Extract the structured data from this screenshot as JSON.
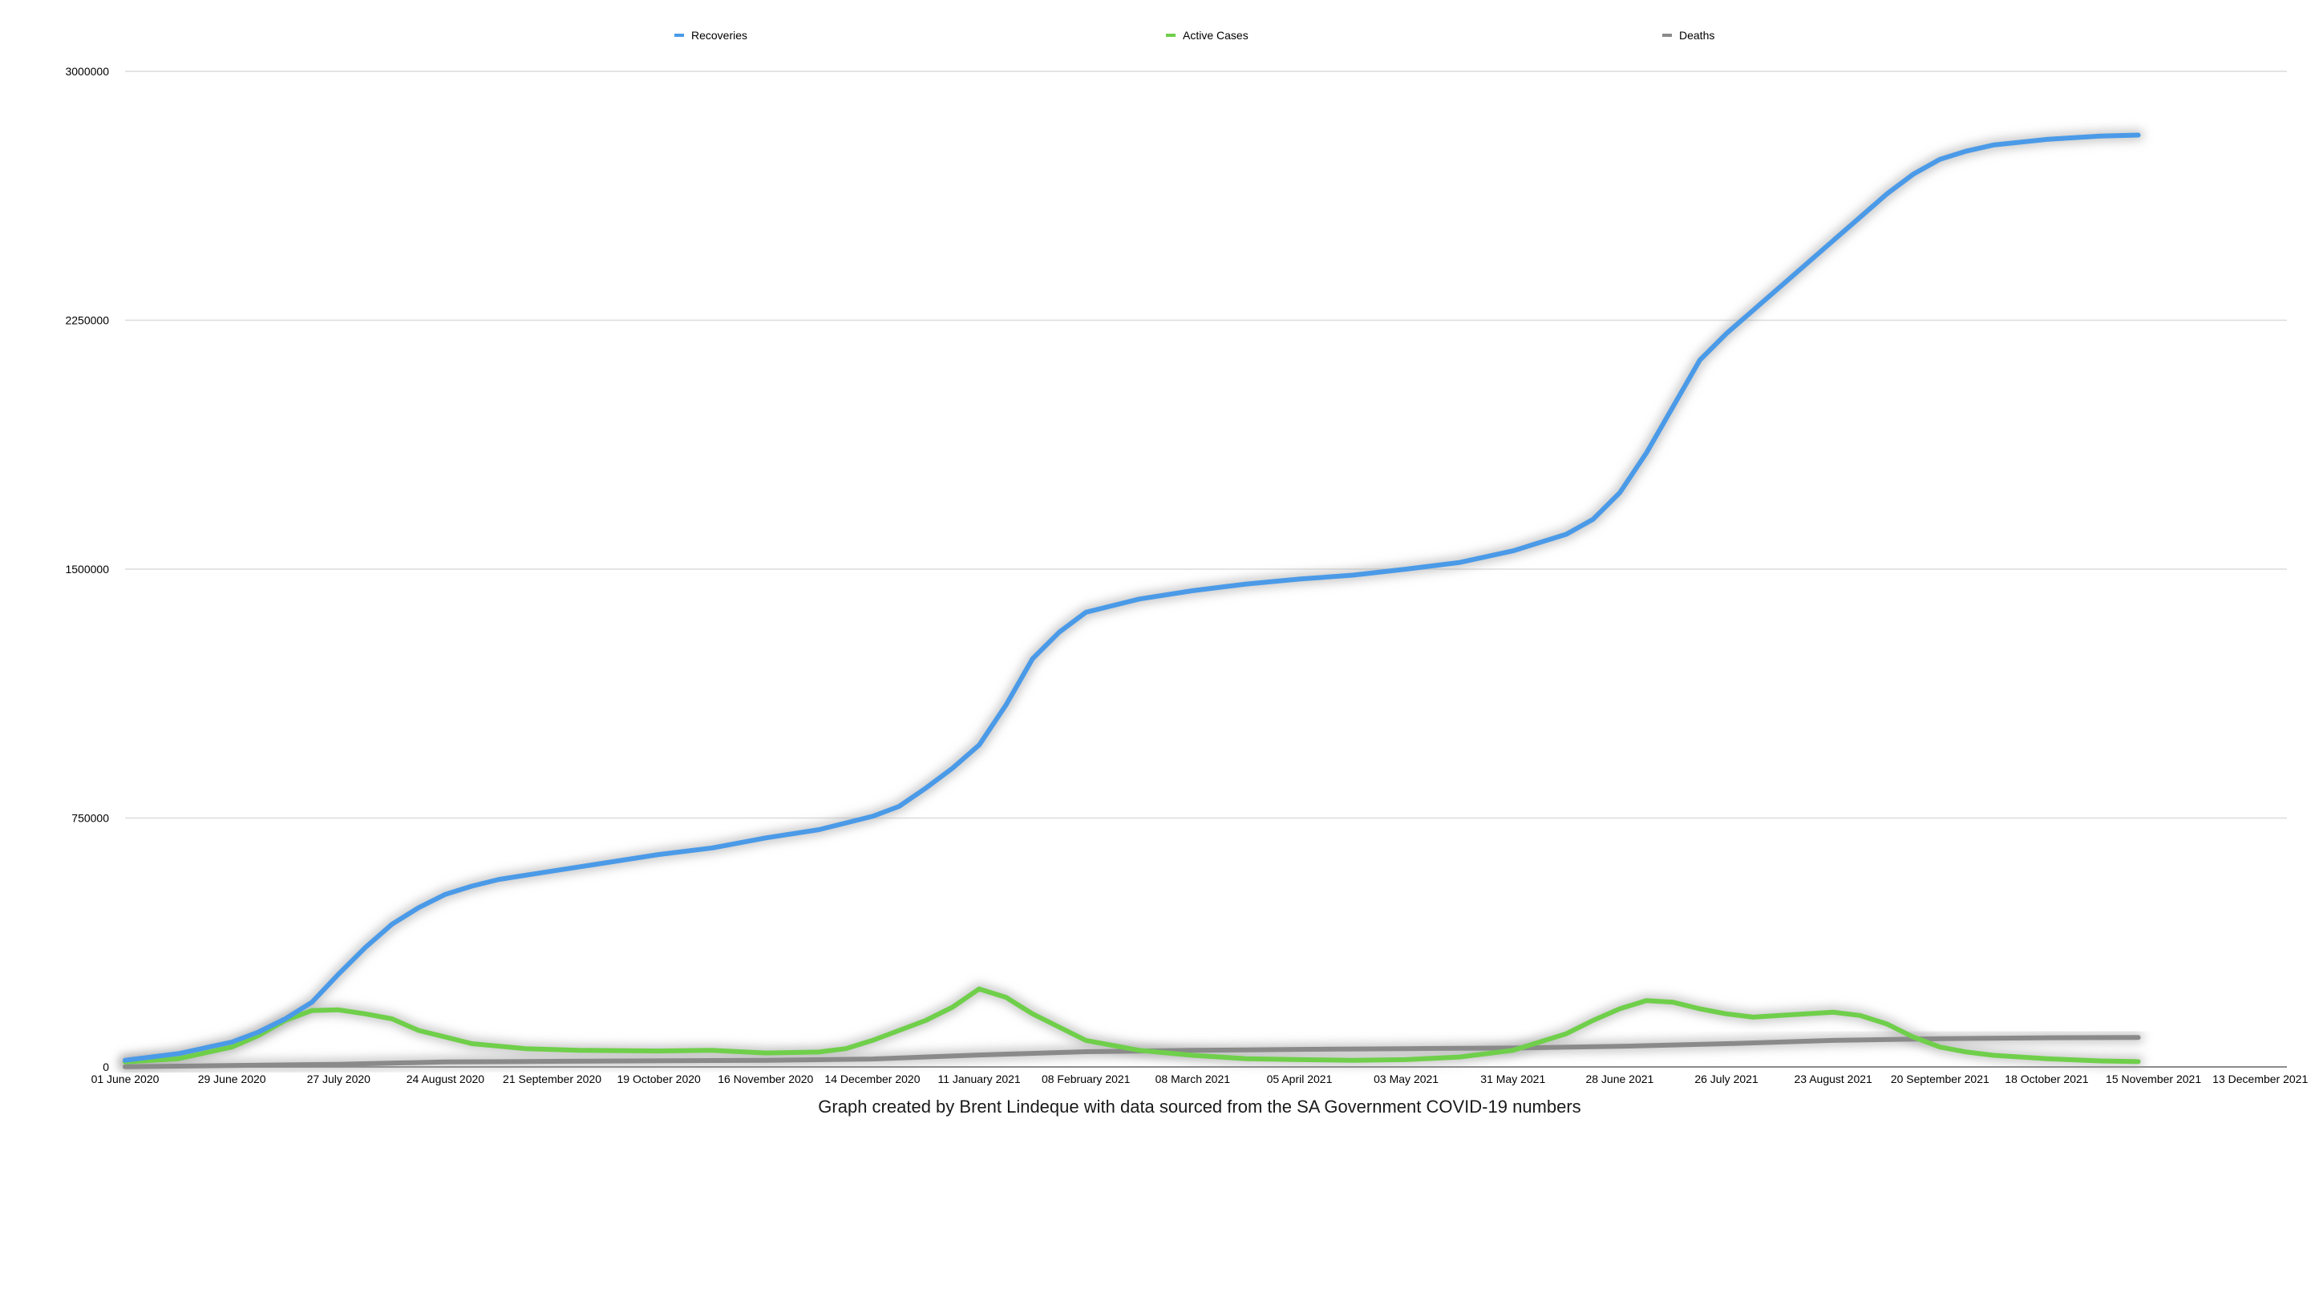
{
  "chart_data": {
    "type": "line",
    "caption": "Graph created by Brent Lindeque with data sourced from the SA Government COVID-19 numbers",
    "ylim": [
      0,
      3000000
    ],
    "y_ticks": [
      "0",
      "750000",
      "1500000",
      "2250000",
      "3000000"
    ],
    "y_tick_values": [
      0,
      750000,
      1500000,
      2250000,
      3000000
    ],
    "x_start": "2020-06-01",
    "x_end": "2021-12-20",
    "x_ticks": [
      {
        "date": "2020-06-01",
        "label": "01 June 2020"
      },
      {
        "date": "2020-06-29",
        "label": "29 June 2020"
      },
      {
        "date": "2020-07-27",
        "label": "27 July 2020"
      },
      {
        "date": "2020-08-24",
        "label": "24 August 2020"
      },
      {
        "date": "2020-09-21",
        "label": "21 September 2020"
      },
      {
        "date": "2020-10-19",
        "label": "19 October 2020"
      },
      {
        "date": "2020-11-16",
        "label": "16 November 2020"
      },
      {
        "date": "2020-12-14",
        "label": "14 December 2020"
      },
      {
        "date": "2021-01-11",
        "label": "11 January 2021"
      },
      {
        "date": "2021-02-08",
        "label": "08 February 2021"
      },
      {
        "date": "2021-03-08",
        "label": "08 March 2021"
      },
      {
        "date": "2021-04-05",
        "label": "05 April 2021"
      },
      {
        "date": "2021-05-03",
        "label": "03 May 2021"
      },
      {
        "date": "2021-05-31",
        "label": "31 May 2021"
      },
      {
        "date": "2021-06-28",
        "label": "28 June 2021"
      },
      {
        "date": "2021-07-26",
        "label": "26 July 2021"
      },
      {
        "date": "2021-08-23",
        "label": "23 August 2021"
      },
      {
        "date": "2021-09-20",
        "label": "20 September 2021"
      },
      {
        "date": "2021-10-18",
        "label": "18 October 2021"
      },
      {
        "date": "2021-11-15",
        "label": "15 November 2021"
      },
      {
        "date": "2021-12-13",
        "label": "13 December 2021"
      }
    ],
    "legend_position": "top",
    "grid": true,
    "series": [
      {
        "name": "Recoveries",
        "color": "#4a9ae8",
        "points": [
          [
            "2020-06-01",
            20000
          ],
          [
            "2020-06-15",
            40000
          ],
          [
            "2020-06-29",
            75000
          ],
          [
            "2020-07-06",
            105000
          ],
          [
            "2020-07-13",
            145000
          ],
          [
            "2020-07-20",
            195000
          ],
          [
            "2020-07-27",
            280000
          ],
          [
            "2020-08-03",
            360000
          ],
          [
            "2020-08-10",
            430000
          ],
          [
            "2020-08-17",
            480000
          ],
          [
            "2020-08-24",
            520000
          ],
          [
            "2020-08-31",
            545000
          ],
          [
            "2020-09-07",
            565000
          ],
          [
            "2020-09-21",
            590000
          ],
          [
            "2020-10-05",
            615000
          ],
          [
            "2020-10-19",
            640000
          ],
          [
            "2020-11-02",
            660000
          ],
          [
            "2020-11-16",
            690000
          ],
          [
            "2020-11-30",
            715000
          ],
          [
            "2020-12-14",
            755000
          ],
          [
            "2020-12-21",
            785000
          ],
          [
            "2020-12-28",
            840000
          ],
          [
            "2021-01-04",
            900000
          ],
          [
            "2021-01-11",
            970000
          ],
          [
            "2021-01-18",
            1090000
          ],
          [
            "2021-01-25",
            1230000
          ],
          [
            "2021-02-01",
            1310000
          ],
          [
            "2021-02-08",
            1370000
          ],
          [
            "2021-02-22",
            1410000
          ],
          [
            "2021-03-08",
            1435000
          ],
          [
            "2021-03-22",
            1455000
          ],
          [
            "2021-04-05",
            1470000
          ],
          [
            "2021-04-19",
            1482000
          ],
          [
            "2021-05-03",
            1500000
          ],
          [
            "2021-05-17",
            1520000
          ],
          [
            "2021-05-31",
            1555000
          ],
          [
            "2021-06-14",
            1605000
          ],
          [
            "2021-06-21",
            1650000
          ],
          [
            "2021-06-28",
            1730000
          ],
          [
            "2021-07-05",
            1850000
          ],
          [
            "2021-07-12",
            1990000
          ],
          [
            "2021-07-19",
            2130000
          ],
          [
            "2021-07-26",
            2210000
          ],
          [
            "2021-08-02",
            2280000
          ],
          [
            "2021-08-09",
            2350000
          ],
          [
            "2021-08-16",
            2420000
          ],
          [
            "2021-08-23",
            2490000
          ],
          [
            "2021-08-30",
            2560000
          ],
          [
            "2021-09-06",
            2630000
          ],
          [
            "2021-09-13",
            2690000
          ],
          [
            "2021-09-20",
            2735000
          ],
          [
            "2021-09-27",
            2760000
          ],
          [
            "2021-10-04",
            2778000
          ],
          [
            "2021-10-18",
            2795000
          ],
          [
            "2021-11-01",
            2805000
          ],
          [
            "2021-11-11",
            2808000
          ]
        ]
      },
      {
        "name": "Active Cases",
        "color": "#6fcf4a",
        "points": [
          [
            "2020-06-01",
            15000
          ],
          [
            "2020-06-15",
            25000
          ],
          [
            "2020-06-29",
            60000
          ],
          [
            "2020-07-06",
            95000
          ],
          [
            "2020-07-13",
            140000
          ],
          [
            "2020-07-20",
            170000
          ],
          [
            "2020-07-27",
            172000
          ],
          [
            "2020-08-03",
            160000
          ],
          [
            "2020-08-10",
            145000
          ],
          [
            "2020-08-17",
            110000
          ],
          [
            "2020-08-24",
            90000
          ],
          [
            "2020-08-31",
            70000
          ],
          [
            "2020-09-14",
            55000
          ],
          [
            "2020-09-28",
            50000
          ],
          [
            "2020-10-19",
            48000
          ],
          [
            "2020-11-02",
            50000
          ],
          [
            "2020-11-16",
            42000
          ],
          [
            "2020-11-30",
            45000
          ],
          [
            "2020-12-07",
            55000
          ],
          [
            "2020-12-14",
            80000
          ],
          [
            "2020-12-21",
            110000
          ],
          [
            "2020-12-28",
            140000
          ],
          [
            "2021-01-04",
            180000
          ],
          [
            "2021-01-11",
            235000
          ],
          [
            "2021-01-18",
            210000
          ],
          [
            "2021-01-25",
            160000
          ],
          [
            "2021-02-01",
            120000
          ],
          [
            "2021-02-08",
            80000
          ],
          [
            "2021-02-22",
            50000
          ],
          [
            "2021-03-08",
            35000
          ],
          [
            "2021-03-22",
            25000
          ],
          [
            "2021-04-05",
            22000
          ],
          [
            "2021-04-19",
            20000
          ],
          [
            "2021-05-03",
            22000
          ],
          [
            "2021-05-17",
            30000
          ],
          [
            "2021-05-31",
            50000
          ],
          [
            "2021-06-14",
            100000
          ],
          [
            "2021-06-21",
            140000
          ],
          [
            "2021-06-28",
            175000
          ],
          [
            "2021-07-05",
            200000
          ],
          [
            "2021-07-12",
            195000
          ],
          [
            "2021-07-19",
            175000
          ],
          [
            "2021-07-26",
            160000
          ],
          [
            "2021-08-02",
            150000
          ],
          [
            "2021-08-09",
            155000
          ],
          [
            "2021-08-16",
            160000
          ],
          [
            "2021-08-23",
            165000
          ],
          [
            "2021-08-30",
            155000
          ],
          [
            "2021-09-06",
            130000
          ],
          [
            "2021-09-13",
            90000
          ],
          [
            "2021-09-20",
            60000
          ],
          [
            "2021-09-27",
            45000
          ],
          [
            "2021-10-04",
            35000
          ],
          [
            "2021-10-18",
            25000
          ],
          [
            "2021-11-01",
            18000
          ],
          [
            "2021-11-11",
            16000
          ]
        ]
      },
      {
        "name": "Deaths",
        "color": "#8a8a8a",
        "points": [
          [
            "2020-06-01",
            700
          ],
          [
            "2020-07-27",
            8000
          ],
          [
            "2020-08-24",
            15000
          ],
          [
            "2020-09-21",
            17000
          ],
          [
            "2020-11-16",
            20000
          ],
          [
            "2020-12-14",
            24000
          ],
          [
            "2021-01-11",
            36000
          ],
          [
            "2021-02-08",
            46000
          ],
          [
            "2021-03-08",
            50000
          ],
          [
            "2021-04-05",
            53000
          ],
          [
            "2021-05-03",
            55000
          ],
          [
            "2021-05-31",
            57000
          ],
          [
            "2021-06-28",
            62000
          ],
          [
            "2021-07-26",
            70000
          ],
          [
            "2021-08-23",
            80000
          ],
          [
            "2021-09-20",
            85000
          ],
          [
            "2021-10-18",
            88000
          ],
          [
            "2021-11-11",
            89000
          ]
        ]
      }
    ]
  }
}
